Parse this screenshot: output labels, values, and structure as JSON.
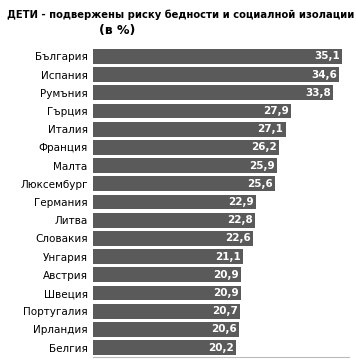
{
  "chart_data": {
    "type": "bar",
    "orientation": "horizontal",
    "title": "ДЕТИ - подвержены риску бедности и социалной изолации",
    "subtitle": "(в %)",
    "categories": [
      "България",
      "Испания",
      "Румъния",
      "Гърция",
      "Италия",
      "Франция",
      "Малта",
      "Люксембург",
      "Германия",
      "Литва",
      "Словакия",
      "Унгария",
      "Австрия",
      "Швеция",
      "Португалия",
      "Ирландия",
      "Белгия"
    ],
    "values": [
      35.1,
      34.6,
      33.8,
      27.9,
      27.1,
      26.2,
      25.9,
      25.6,
      22.9,
      22.8,
      22.6,
      21.1,
      20.9,
      20.9,
      20.7,
      20.6,
      20.2
    ],
    "value_labels": [
      "35,1",
      "34,6",
      "33,8",
      "27,9",
      "27,1",
      "26,2",
      "25,9",
      "25,6",
      "22,9",
      "22,8",
      "22,6",
      "21,1",
      "20,9",
      "20,9",
      "20,7",
      "20,6",
      "20,2"
    ],
    "color": "#5a5a5a",
    "xlim": [
      0,
      36
    ],
    "xticks": [],
    "data_labels": true,
    "tick_labels": "y",
    "grid": false
  }
}
